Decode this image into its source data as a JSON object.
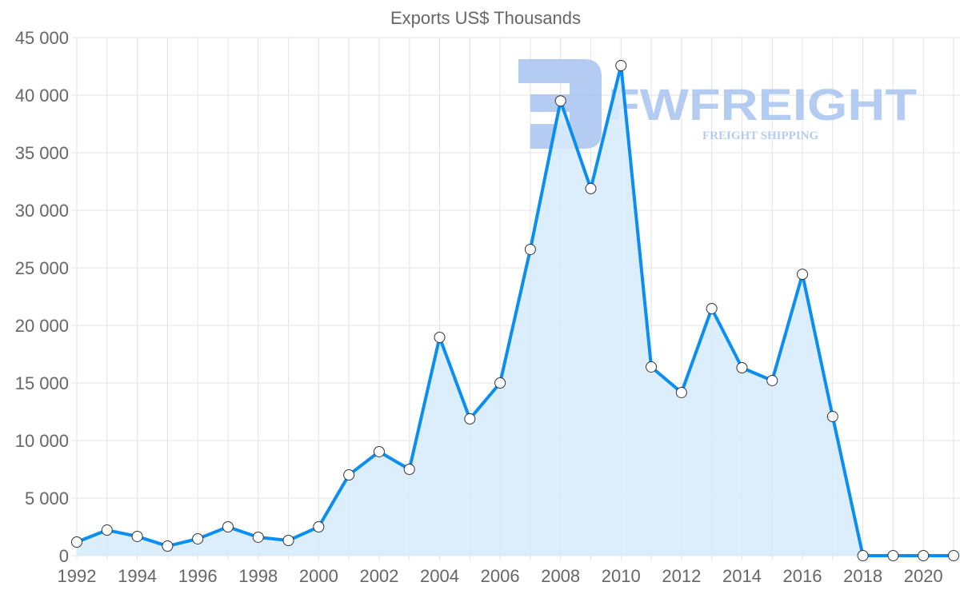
{
  "chart_data": {
    "type": "line",
    "title": "Exports US$ Thousands",
    "xlabel": "",
    "ylabel": "",
    "x": [
      1992,
      1993,
      1994,
      1995,
      1996,
      1997,
      1998,
      1999,
      2000,
      2001,
      2002,
      2003,
      2004,
      2005,
      2006,
      2007,
      2008,
      2009,
      2010,
      2011,
      2012,
      2013,
      2014,
      2015,
      2016,
      2017,
      2018,
      2019,
      2020,
      2021
    ],
    "series": [
      {
        "name": "Exports US$ Thousands",
        "values": [
          1180,
          2220,
          1670,
          830,
          1460,
          2500,
          1600,
          1320,
          2500,
          7010,
          9030,
          7500,
          18960,
          11880,
          15000,
          26600,
          39500,
          31880,
          42570,
          16390,
          14170,
          21460,
          16320,
          15210,
          24440,
          12080,
          0,
          0,
          0,
          0
        ]
      }
    ],
    "xlim": [
      1992,
      2021
    ],
    "ylim": [
      0,
      45000
    ],
    "x_ticks": [
      "1992",
      "1994",
      "1996",
      "1998",
      "2000",
      "2002",
      "2004",
      "2006",
      "2008",
      "2010",
      "2012",
      "2014",
      "2016",
      "2018",
      "2020"
    ],
    "y_ticks": [
      "0",
      "5 000",
      "10 000",
      "15 000",
      "20 000",
      "25 000",
      "30 000",
      "35 000",
      "40 000",
      "45 000"
    ],
    "grid": true,
    "filled": true,
    "colors": {
      "line": "#0a8ef2",
      "fill": "#d8ebfc",
      "grid": "#e3e3e3",
      "text": "#666666",
      "watermark": "#a9c4f0"
    }
  },
  "watermark": {
    "brand": "FWFREIGHT",
    "tagline": "FREIGHT SHIPPING"
  }
}
